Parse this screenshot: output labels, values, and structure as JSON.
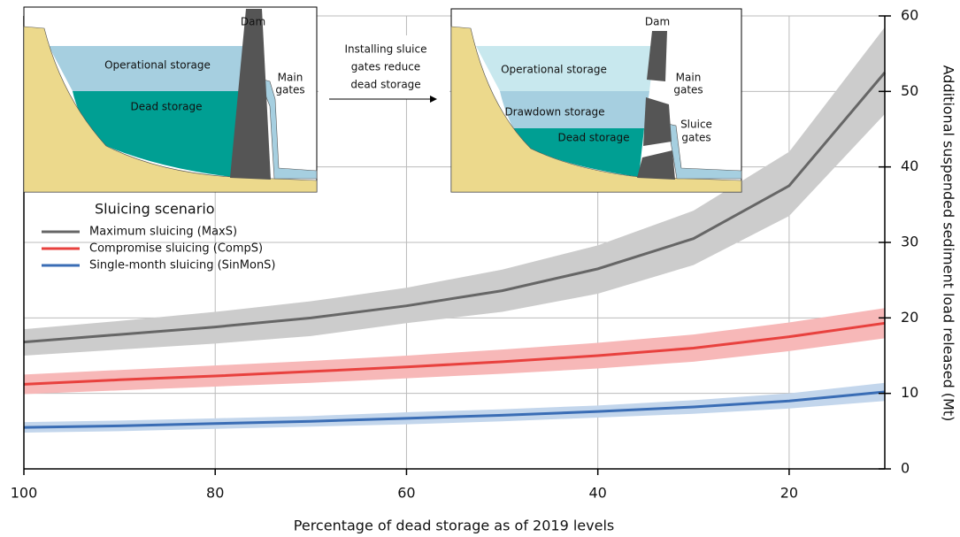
{
  "chart_data": {
    "type": "line",
    "x_label": "Percentage of dead storage as of 2019 levels",
    "y_label": "Additional suspended sediment load released (Mt)",
    "xlim": [
      100,
      10
    ],
    "ylim": [
      0,
      60
    ],
    "xticks": [
      100,
      80,
      60,
      40,
      20
    ],
    "yticks": [
      0,
      10,
      20,
      30,
      40,
      50,
      60
    ],
    "grid": true,
    "legend_title": "Sluicing scenario",
    "x": [
      100,
      90,
      80,
      70,
      60,
      50,
      40,
      30,
      20,
      10
    ],
    "series": [
      {
        "name": "Maximum sluicing (MaxS)",
        "color": "#666666",
        "band_color": "#cccccc",
        "values": [
          16.8,
          17.8,
          18.8,
          20.0,
          21.6,
          23.6,
          26.5,
          30.5,
          37.5,
          52.5
        ],
        "lower": [
          15.0,
          15.8,
          16.6,
          17.6,
          19.3,
          20.8,
          23.2,
          27.0,
          33.5,
          47.0
        ],
        "upper": [
          18.5,
          19.6,
          20.8,
          22.2,
          24.0,
          26.4,
          29.6,
          34.2,
          42.0,
          58.5
        ]
      },
      {
        "name": "Compromise sluicing (CompS)",
        "color": "#e8413e",
        "band_color": "#f7b8b8",
        "values": [
          11.2,
          11.8,
          12.3,
          12.9,
          13.5,
          14.2,
          15.0,
          16.0,
          17.5,
          19.3
        ],
        "lower": [
          9.9,
          10.4,
          10.9,
          11.4,
          12.0,
          12.6,
          13.3,
          14.2,
          15.6,
          17.3
        ],
        "upper": [
          12.5,
          13.1,
          13.7,
          14.3,
          15.0,
          15.8,
          16.7,
          17.8,
          19.4,
          21.3
        ]
      },
      {
        "name": "Single-month sluicing (SinMonS)",
        "color": "#3a6db5",
        "band_color": "#c3d6ec",
        "values": [
          5.5,
          5.7,
          6.0,
          6.3,
          6.7,
          7.1,
          7.6,
          8.2,
          9.0,
          10.2
        ],
        "lower": [
          4.8,
          5.0,
          5.3,
          5.6,
          5.9,
          6.3,
          6.8,
          7.3,
          8.0,
          9.0
        ],
        "upper": [
          6.2,
          6.4,
          6.7,
          7.0,
          7.5,
          7.9,
          8.4,
          9.1,
          10.0,
          11.4
        ]
      }
    ],
    "annotations": {
      "before": {
        "dam": "Dam",
        "operational": "Operational storage",
        "dead": "Dead storage",
        "main_gates": [
          "Main",
          "gates"
        ]
      },
      "arrow_label": [
        "Installing sluice",
        "gates reduce",
        "dead storage"
      ],
      "after": {
        "dam": "Dam",
        "operational": "Operational storage",
        "drawdown": "Drawdown storage",
        "dead": "Dead storage",
        "main_gates": [
          "Main",
          "gates"
        ],
        "sluice_gates": [
          "Sluice",
          "gates"
        ]
      }
    }
  }
}
